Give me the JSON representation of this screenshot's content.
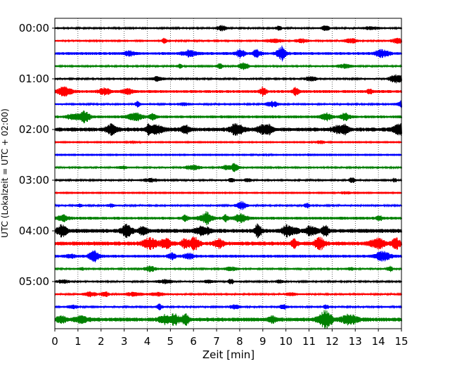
{
  "chart_data": {
    "type": "line",
    "title": "",
    "xlabel": "Zeit  [min]",
    "ylabel": "UTC (Lokalzeit = UTC + 02:00)",
    "xlim": [
      0,
      15
    ],
    "x_ticks": [
      "0",
      "1",
      "2",
      "3",
      "4",
      "5",
      "6",
      "7",
      "8",
      "9",
      "10",
      "11",
      "12",
      "13",
      "14",
      "15"
    ],
    "y_ticks": [
      "00:00",
      "01:00",
      "02:00",
      "03:00",
      "04:00",
      "05:00"
    ],
    "grid": "vertical dotted at each minute",
    "trace_colors": [
      "#000000",
      "#ff0000",
      "#0000ff",
      "#008000"
    ],
    "series": [
      {
        "start": "00:00",
        "color": "#000000",
        "activity": "low"
      },
      {
        "start": "00:15",
        "color": "#ff0000",
        "activity": "low"
      },
      {
        "start": "00:30",
        "color": "#0000ff",
        "activity": "moderate"
      },
      {
        "start": "00:45",
        "color": "#008000",
        "activity": "low"
      },
      {
        "start": "01:00",
        "color": "#000000",
        "activity": "low"
      },
      {
        "start": "01:15",
        "color": "#ff0000",
        "activity": "moderate"
      },
      {
        "start": "01:30",
        "color": "#0000ff",
        "activity": "low"
      },
      {
        "start": "01:45",
        "color": "#008000",
        "activity": "moderate"
      },
      {
        "start": "02:00",
        "color": "#000000",
        "activity": "high"
      },
      {
        "start": "02:15",
        "color": "#ff0000",
        "activity": "quiet"
      },
      {
        "start": "02:30",
        "color": "#0000ff",
        "activity": "quiet"
      },
      {
        "start": "02:45",
        "color": "#008000",
        "activity": "low"
      },
      {
        "start": "03:00",
        "color": "#000000",
        "activity": "low"
      },
      {
        "start": "03:15",
        "color": "#ff0000",
        "activity": "quiet"
      },
      {
        "start": "03:30",
        "color": "#0000ff",
        "activity": "low"
      },
      {
        "start": "03:45",
        "color": "#008000",
        "activity": "moderate"
      },
      {
        "start": "04:00",
        "color": "#000000",
        "activity": "high"
      },
      {
        "start": "04:15",
        "color": "#ff0000",
        "activity": "high"
      },
      {
        "start": "04:30",
        "color": "#0000ff",
        "activity": "moderate"
      },
      {
        "start": "04:45",
        "color": "#008000",
        "activity": "low"
      },
      {
        "start": "05:00",
        "color": "#000000",
        "activity": "low"
      },
      {
        "start": "05:15",
        "color": "#ff0000",
        "activity": "low"
      },
      {
        "start": "05:30",
        "color": "#0000ff",
        "activity": "low"
      },
      {
        "start": "05:45",
        "color": "#008000",
        "activity": "high"
      }
    ]
  }
}
